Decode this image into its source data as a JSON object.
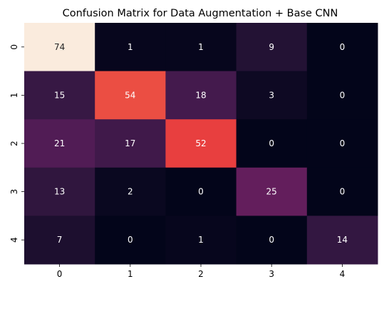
{
  "chart_data": {
    "type": "heatmap",
    "title": "Confusion Matrix for Data Augmentation + Base CNN",
    "xlabel": "",
    "ylabel": "",
    "x_categories": [
      "0",
      "1",
      "2",
      "3",
      "4"
    ],
    "y_categories": [
      "0",
      "1",
      "2",
      "3",
      "4"
    ],
    "values": [
      [
        74,
        1,
        1,
        9,
        0
      ],
      [
        15,
        54,
        18,
        3,
        0
      ],
      [
        21,
        17,
        52,
        0,
        0
      ],
      [
        13,
        2,
        0,
        25,
        0
      ],
      [
        7,
        0,
        1,
        0,
        14
      ]
    ],
    "value_range": [
      0,
      74
    ],
    "colormap": "rocket",
    "colorbar": false,
    "annotations": true,
    "grid": false
  },
  "colors": {
    "low": "#03051a",
    "high": "#faebdd",
    "text_light": "#ffffff",
    "text_dark": "#262626"
  }
}
